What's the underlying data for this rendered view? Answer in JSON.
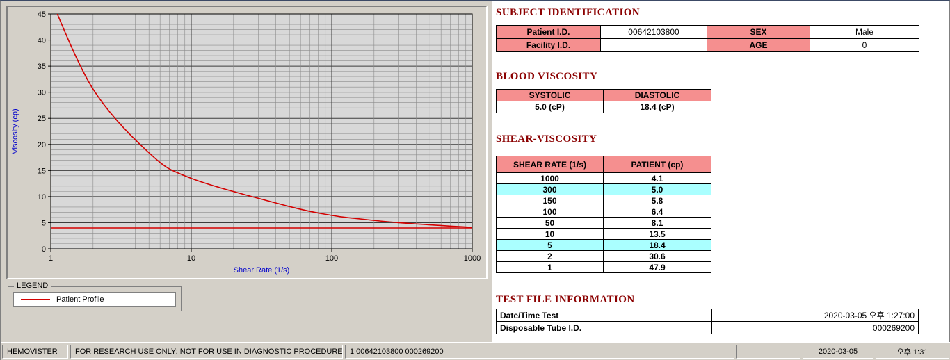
{
  "colors": {
    "chrome": "#d4d0c8",
    "header": "#8b0000",
    "pink": "#f58f8f",
    "cyan": "#aaffff",
    "accent_red": "#d40000",
    "axis_label": "#0000cc"
  },
  "chart_data": {
    "type": "line",
    "title": "",
    "xlabel": "Shear Rate (1/s)",
    "ylabel": "Viscosity (cp)",
    "x_scale": "log",
    "xlim": [
      1,
      1000
    ],
    "ylim": [
      0,
      45
    ],
    "x_ticks": [
      1,
      10,
      100,
      1000
    ],
    "y_ticks": [
      0,
      5,
      10,
      15,
      20,
      25,
      30,
      35,
      40,
      45
    ],
    "grid": "major+minor",
    "legend_position": "below-left",
    "series": [
      {
        "name": "Patient Profile",
        "color": "#d40000",
        "x": [
          1,
          2,
          5,
          10,
          50,
          100,
          150,
          300,
          1000
        ],
        "y": [
          47.9,
          30.6,
          18.4,
          13.5,
          8.1,
          6.4,
          5.8,
          5.0,
          4.1
        ]
      }
    ],
    "hline": {
      "y": 4.0,
      "color": "#d40000"
    }
  },
  "legend": {
    "title": "LEGEND",
    "items": [
      {
        "label": "Patient Profile",
        "color": "#d40000"
      }
    ]
  },
  "subject": {
    "title": "SUBJECT IDENTIFICATION",
    "rows": [
      {
        "label1": "Patient I.D.",
        "value1": "00642103800",
        "label2": "SEX",
        "value2": "Male"
      },
      {
        "label1": "Facility I.D.",
        "value1": "",
        "label2": "AGE",
        "value2": "0"
      }
    ]
  },
  "blood_viscosity": {
    "title": "BLOOD VISCOSITY",
    "headers": [
      "SYSTOLIC",
      "DIASTOLIC"
    ],
    "values": [
      "5.0 (cP)",
      "18.4 (cP)"
    ]
  },
  "shear_viscosity": {
    "title": "SHEAR-VISCOSITY",
    "headers": [
      "SHEAR RATE (1/s)",
      "PATIENT (cp)"
    ],
    "rows": [
      {
        "rate": "1000",
        "value": "4.1",
        "highlight": false
      },
      {
        "rate": "300",
        "value": "5.0",
        "highlight": true
      },
      {
        "rate": "150",
        "value": "5.8",
        "highlight": false
      },
      {
        "rate": "100",
        "value": "6.4",
        "highlight": false
      },
      {
        "rate": "50",
        "value": "8.1",
        "highlight": false
      },
      {
        "rate": "10",
        "value": "13.5",
        "highlight": false
      },
      {
        "rate": "5",
        "value": "18.4",
        "highlight": true
      },
      {
        "rate": "2",
        "value": "30.6",
        "highlight": false
      },
      {
        "rate": "1",
        "value": "47.9",
        "highlight": false
      }
    ]
  },
  "test_file": {
    "title": "TEST FILE INFORMATION",
    "rows": [
      {
        "label": "Date/Time Test",
        "value": "2020-03-05   오후 1:27:00"
      },
      {
        "label": "Disposable Tube I.D.",
        "value": "000269200"
      }
    ]
  },
  "status_bar": {
    "app_name": "HEMOVISTER",
    "notice": "FOR RESEARCH USE ONLY: NOT FOR USE IN DIAGNOSTIC PROCEDURES",
    "record": "1  00642103800  000269200",
    "date": "2020-03-05",
    "time": "오후 1:31"
  }
}
